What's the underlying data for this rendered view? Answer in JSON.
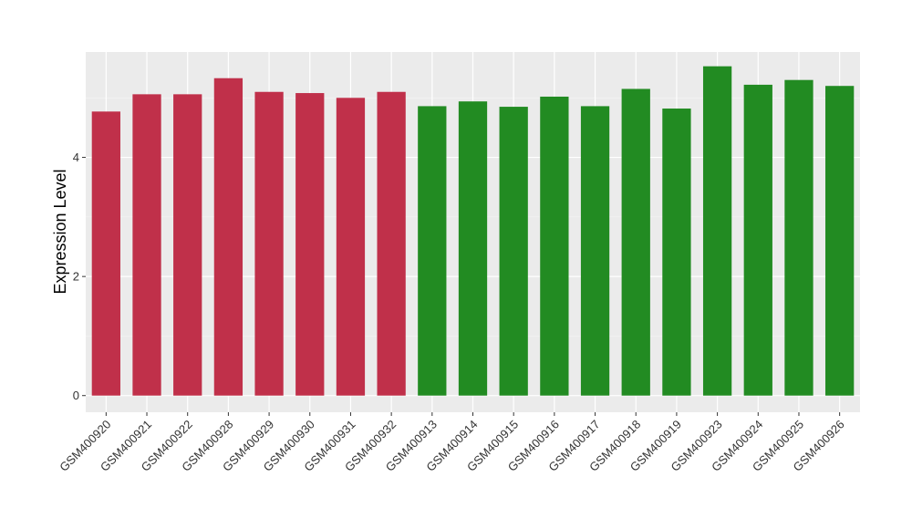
{
  "chart_data": {
    "type": "bar",
    "title": "",
    "xlabel": "",
    "ylabel": "Expression Level",
    "ylim": [
      -0.28,
      5.77
    ],
    "yticks": [
      0,
      2,
      4
    ],
    "grid": true,
    "legend": "none",
    "panel_background": "#ebebeb",
    "categories": [
      "GSM400920",
      "GSM400921",
      "GSM400922",
      "GSM400928",
      "GSM400929",
      "GSM400930",
      "GSM400931",
      "GSM400932",
      "GSM400913",
      "GSM400914",
      "GSM400915",
      "GSM400916",
      "GSM400917",
      "GSM400918",
      "GSM400919",
      "GSM400923",
      "GSM400924",
      "GSM400925",
      "GSM400926"
    ],
    "values": [
      4.77,
      5.06,
      5.06,
      5.33,
      5.1,
      5.08,
      5.0,
      5.1,
      4.86,
      4.94,
      4.85,
      5.02,
      4.86,
      5.15,
      4.82,
      5.53,
      5.22,
      5.3,
      5.2
    ],
    "colors": [
      "#c0304a",
      "#c0304a",
      "#c0304a",
      "#c0304a",
      "#c0304a",
      "#c0304a",
      "#c0304a",
      "#c0304a",
      "#228b22",
      "#228b22",
      "#228b22",
      "#228b22",
      "#228b22",
      "#228b22",
      "#228b22",
      "#228b22",
      "#228b22",
      "#228b22",
      "#228b22"
    ]
  }
}
